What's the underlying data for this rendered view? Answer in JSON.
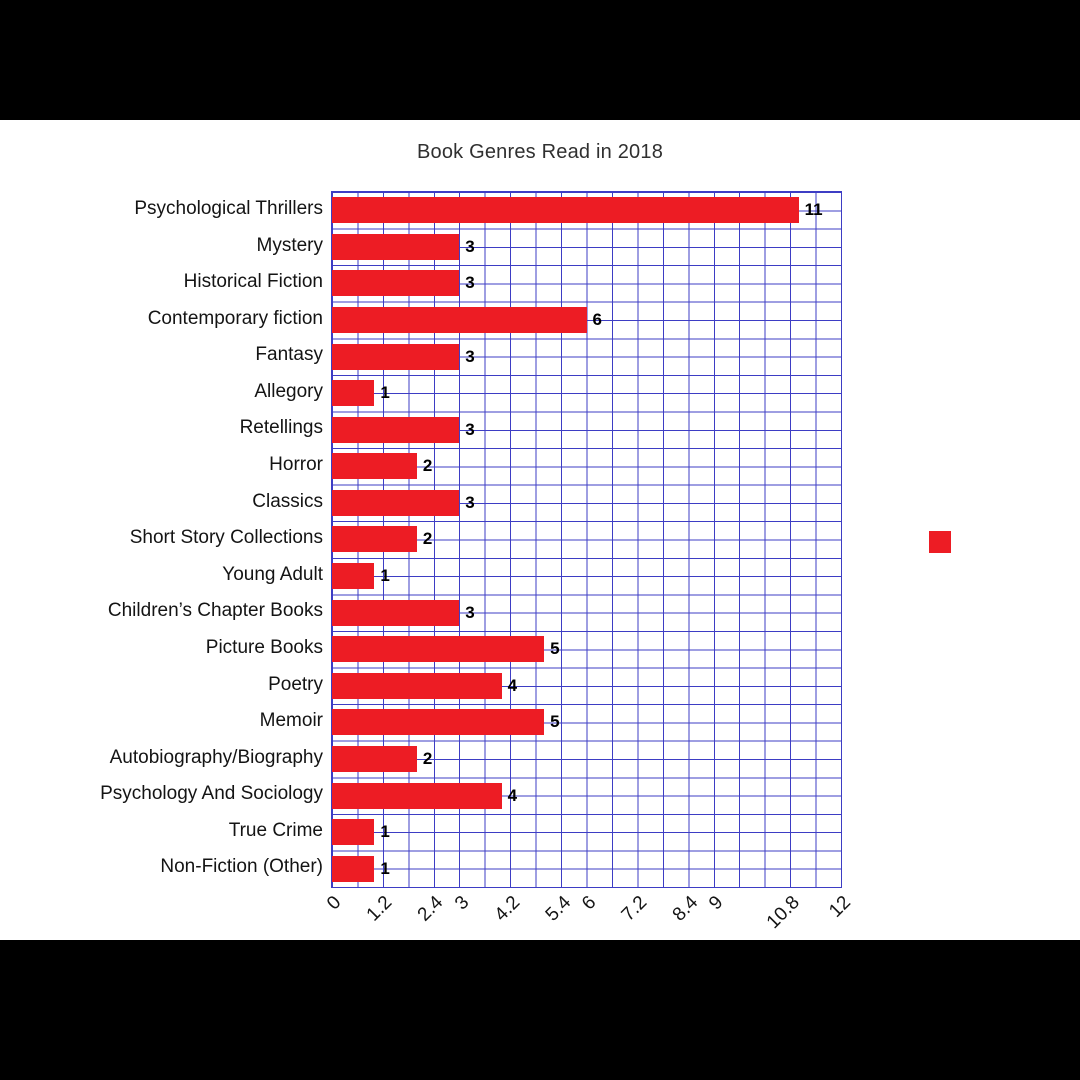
{
  "chart_data": {
    "type": "bar",
    "orientation": "horizontal",
    "title": "Book Genres Read in 2018",
    "categories": [
      "Psychological Thrillers",
      "Mystery",
      "Historical Fiction",
      "Contemporary fiction",
      "Fantasy",
      "Allegory",
      "Retellings",
      "Horror",
      "Classics",
      "Short Story Collections",
      "Young Adult",
      "Children’s Chapter Books",
      "Picture Books",
      "Poetry",
      "Memoir",
      "Autobiography/Biography",
      "Psychology And Sociology",
      "True Crime",
      "Non-Fiction (Other)"
    ],
    "values": [
      11,
      3,
      3,
      6,
      3,
      1,
      3,
      2,
      3,
      2,
      1,
      3,
      5,
      4,
      5,
      2,
      4,
      1,
      1
    ],
    "xlim": [
      0,
      12
    ],
    "x_ticks": [
      {
        "value": 0,
        "label": "0"
      },
      {
        "value": 1.2,
        "label": "1.2"
      },
      {
        "value": 2.4,
        "label": "2.4"
      },
      {
        "value": 3,
        "label": "3"
      },
      {
        "value": 4.2,
        "label": "4.2"
      },
      {
        "value": 5.4,
        "label": "5.4"
      },
      {
        "value": 6,
        "label": "6"
      },
      {
        "value": 7.2,
        "label": "7.2"
      },
      {
        "value": 8.4,
        "label": "8.4"
      },
      {
        "value": 9,
        "label": "9"
      },
      {
        "value": 10.8,
        "label": "10.8"
      },
      {
        "value": 12,
        "label": "12"
      }
    ],
    "grid": {
      "on": true,
      "vertical_step": 0.6,
      "color": "#3d3dc4"
    },
    "bar_color": "#ed1c24",
    "value_label_color": "#000000",
    "legend": {
      "position": "right",
      "marker_color": "#ed1c24"
    }
  }
}
